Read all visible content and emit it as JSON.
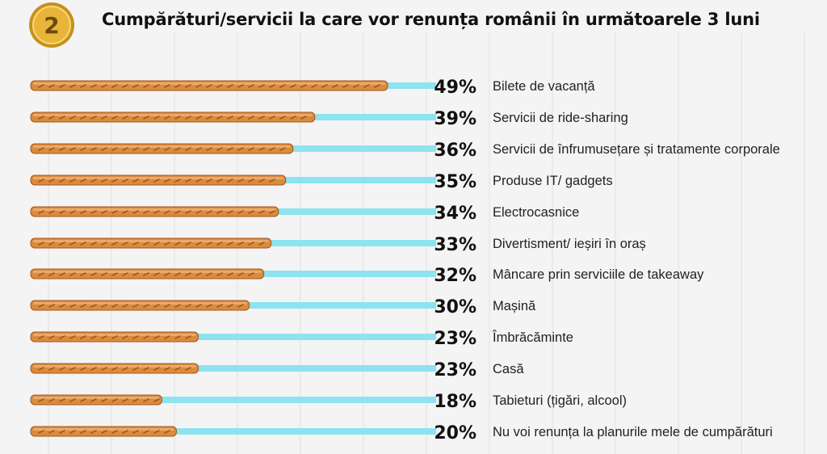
{
  "badge": {
    "number": "2",
    "color": "#e2a827"
  },
  "title": "Cumpărături/servicii la care vor renunța românii în următoarele 3 luni",
  "colors": {
    "track": "#8de3ef",
    "pretzel": "#d98b3e",
    "pretzel_dark": "#a6561c",
    "label": "#222222"
  },
  "chart_data": {
    "type": "bar",
    "orientation": "horizontal",
    "title": "Cumpărături/servicii la care vor renunța românii în următoarele 3 luni",
    "unit": "%",
    "xlim": [
      0,
      49
    ],
    "grid": false,
    "legend": "none",
    "categories": [
      "Bilete de vacanță",
      "Servicii de ride-sharing",
      "Servicii de înfrumusețare și tratamente corporale",
      "Produse IT/ gadgets",
      "Electrocasnice",
      "Divertisment/ ieșiri în oraș",
      "Mâncare prin serviciile de takeaway",
      "Mașină",
      "Îmbrăcăminte",
      "Casă",
      "Tabieturi (țigări, alcool)",
      "Nu voi renunța la planurile mele de cumpărături"
    ],
    "values": [
      49,
      39,
      36,
      35,
      34,
      33,
      32,
      30,
      23,
      23,
      18,
      20
    ],
    "value_labels": [
      "49%",
      "39%",
      "36%",
      "35%",
      "34%",
      "33%",
      "32%",
      "30%",
      "23%",
      "23%",
      "18%",
      "20%"
    ]
  }
}
